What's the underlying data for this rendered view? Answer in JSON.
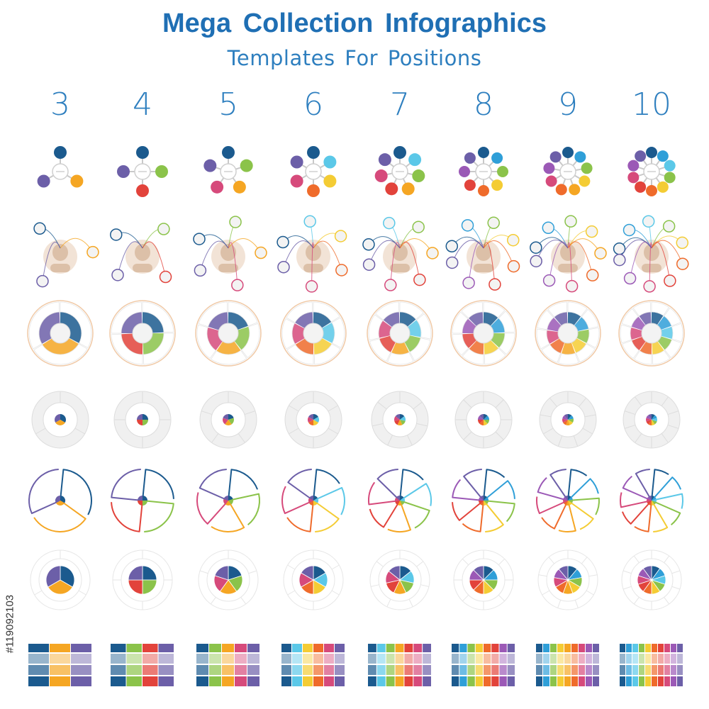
{
  "header": {
    "title": "Mega Collection Infographics",
    "subtitle": "Templates For Positions"
  },
  "positions": [
    3,
    4,
    5,
    6,
    7,
    8,
    9,
    10
  ],
  "watermark": {
    "stock_id": "#119092103"
  },
  "palette": [
    "#1b5a8e",
    "#2f9fd8",
    "#5bc8e8",
    "#8bc34a",
    "#f4cc34",
    "#f5a623",
    "#ef6b2b",
    "#e2433b",
    "#d64a7b",
    "#9b59b6",
    "#6c5fa8"
  ],
  "rows": [
    {
      "style": "bubble-spokes"
    },
    {
      "style": "head-network"
    },
    {
      "style": "numbered-ring"
    },
    {
      "style": "gray-target"
    },
    {
      "style": "outline-petals"
    },
    {
      "style": "segmented-pie"
    },
    {
      "style": "column-bands"
    }
  ]
}
